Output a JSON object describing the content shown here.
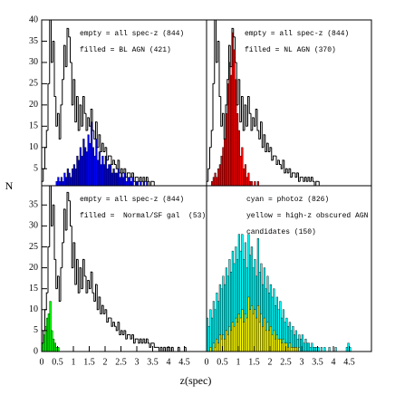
{
  "xlabel": "z(spec)",
  "ylabel": "N",
  "chart_data": [
    {
      "type": "histogram",
      "bins": [
        0,
        0.05,
        0.1,
        0.15,
        0.2,
        0.25,
        0.3,
        0.35,
        0.4,
        0.45,
        0.5,
        0.55,
        0.6,
        0.65,
        0.7,
        0.75,
        0.8,
        0.85,
        0.9,
        0.95,
        1,
        1.05,
        1.1,
        1.15,
        1.2,
        1.25,
        1.3,
        1.35,
        1.4,
        1.45,
        1.5,
        1.55,
        1.6,
        1.65,
        1.7,
        1.75,
        1.8,
        1.85,
        1.9,
        1.95,
        2,
        2.05,
        2.1,
        2.15,
        2.2,
        2.25,
        2.3,
        2.35,
        2.4,
        2.45,
        2.5,
        2.55,
        2.6,
        2.65,
        2.7,
        2.75,
        2.8,
        2.85,
        2.9,
        2.95,
        3,
        3.05,
        3.1,
        3.15,
        3.2,
        3.25,
        3.3,
        3.35,
        3.4,
        3.45,
        3.5,
        3.55,
        3.6,
        3.65,
        3.7,
        3.75,
        3.8,
        3.85,
        3.9,
        3.95,
        4,
        4.05,
        4.1,
        4.15,
        4.2,
        4.25,
        4.3,
        4.35,
        4.4,
        4.45,
        4.5,
        4.55,
        4.6,
        4.65,
        4.7,
        4.75,
        4.8
      ],
      "series": [
        {
          "name": "filled = BL AGN (421)",
          "color": "#0000ff",
          "filled": true,
          "values": [
            0,
            0,
            0,
            0,
            0,
            1,
            0,
            1,
            0,
            2,
            3,
            2,
            3,
            2,
            4,
            3,
            5,
            4,
            3,
            5,
            6,
            5,
            8,
            7,
            10,
            8,
            12,
            10,
            9,
            13,
            11,
            16,
            10,
            8,
            12,
            7,
            9,
            6,
            8,
            6,
            8,
            5,
            6,
            6,
            4,
            5,
            4,
            4,
            5,
            3,
            4,
            3,
            4,
            2,
            3,
            3,
            2,
            3,
            1,
            2,
            2,
            1,
            2,
            1,
            2,
            1,
            2,
            1,
            0,
            1,
            1,
            0,
            1,
            0,
            0,
            0,
            0,
            1,
            0,
            0,
            1,
            0,
            0,
            0,
            0,
            0,
            1,
            0,
            0,
            0,
            1,
            0,
            0,
            0,
            0,
            0
          ]
        },
        {
          "name": "empty = all spec-z (844)",
          "color": "#000000",
          "filled": false,
          "values": [
            2,
            5,
            10,
            14,
            25,
            40,
            30,
            35,
            22,
            15,
            18,
            12,
            20,
            26,
            34,
            29,
            38,
            36,
            30,
            20,
            26,
            16,
            22,
            14,
            20,
            15,
            22,
            18,
            14,
            17,
            15,
            19,
            14,
            12,
            16,
            10,
            13,
            9,
            11,
            9,
            10,
            7,
            8,
            8,
            6,
            7,
            6,
            5,
            7,
            4,
            5,
            4,
            5,
            3,
            4,
            4,
            3,
            4,
            2,
            3,
            3,
            2,
            3,
            2,
            3,
            2,
            3,
            2,
            1,
            2,
            2,
            1,
            1,
            1,
            0,
            1,
            0,
            1,
            0,
            1,
            1,
            0,
            1,
            0,
            0,
            0,
            1,
            0,
            0,
            0,
            1,
            0,
            0,
            0,
            0,
            0
          ]
        }
      ],
      "xlim": [
        0,
        5.2
      ],
      "ylim": [
        1,
        40
      ],
      "yticks": [
        5,
        10,
        15,
        20,
        25,
        30,
        35,
        40
      ]
    },
    {
      "type": "histogram",
      "bins": [
        0,
        0.05,
        0.1,
        0.15,
        0.2,
        0.25,
        0.3,
        0.35,
        0.4,
        0.45,
        0.5,
        0.55,
        0.6,
        0.65,
        0.7,
        0.75,
        0.8,
        0.85,
        0.9,
        0.95,
        1,
        1.05,
        1.1,
        1.15,
        1.2,
        1.25,
        1.3,
        1.35,
        1.4,
        1.45,
        1.5,
        1.55,
        1.6,
        1.65,
        1.7,
        1.75,
        1.8,
        1.85,
        1.9,
        1.95,
        2,
        2.05,
        2.1,
        2.15,
        2.2,
        2.25,
        2.3,
        2.35,
        2.4,
        2.45,
        2.5,
        2.55,
        2.6,
        2.65,
        2.7,
        2.75,
        2.8,
        2.85,
        2.9,
        2.95,
        3,
        3.05,
        3.1,
        3.15,
        3.2,
        3.25,
        3.3,
        3.35,
        3.4,
        3.45,
        3.5,
        3.55,
        3.6,
        3.65,
        3.7,
        3.75,
        3.8,
        3.85,
        3.9,
        3.95,
        4,
        4.05,
        4.1,
        4.15,
        4.2,
        4.25,
        4.3,
        4.35,
        4.4,
        4.45,
        4.5,
        4.55,
        4.6,
        4.65,
        4.7,
        4.75,
        4.8
      ],
      "series": [
        {
          "name": "filled = NL AGN (370)",
          "color": "#ff0000",
          "filled": true,
          "values": [
            0,
            0,
            1,
            2,
            3,
            4,
            3,
            5,
            6,
            8,
            10,
            12,
            18,
            25,
            30,
            27,
            37,
            33,
            26,
            18,
            14,
            8,
            10,
            5,
            6,
            3,
            4,
            2,
            2,
            1,
            2,
            1,
            2,
            0,
            1,
            1,
            0,
            1,
            0,
            1,
            1,
            0,
            1,
            0,
            0,
            1,
            0,
            0,
            1,
            0,
            0,
            0,
            1,
            0,
            0,
            0,
            0,
            0,
            0,
            0,
            0,
            0,
            0,
            0,
            0,
            0,
            0,
            0,
            0,
            0,
            0,
            0,
            0,
            0,
            0,
            0,
            0,
            0,
            0,
            0,
            0,
            0,
            0,
            0,
            0,
            0,
            0,
            0,
            0,
            0,
            0,
            0,
            0,
            0,
            0,
            0
          ]
        },
        {
          "name": "empty = all spec-z (844)",
          "color": "#000000",
          "filled": false,
          "values": [
            2,
            5,
            10,
            14,
            25,
            40,
            30,
            35,
            22,
            15,
            18,
            12,
            20,
            26,
            34,
            29,
            38,
            36,
            30,
            20,
            26,
            16,
            22,
            14,
            20,
            15,
            22,
            18,
            14,
            17,
            15,
            19,
            14,
            12,
            16,
            10,
            13,
            9,
            11,
            9,
            10,
            7,
            8,
            8,
            6,
            7,
            6,
            5,
            7,
            4,
            5,
            4,
            5,
            3,
            4,
            4,
            3,
            4,
            2,
            3,
            3,
            2,
            3,
            2,
            3,
            2,
            3,
            2,
            1,
            2,
            2,
            1,
            1,
            1,
            0,
            1,
            0,
            1,
            0,
            1,
            1,
            0,
            1,
            0,
            0,
            0,
            1,
            0,
            0,
            0,
            1,
            0,
            0,
            0,
            0,
            0
          ]
        }
      ],
      "xlim": [
        0,
        5.2
      ],
      "ylim": [
        1,
        40
      ]
    },
    {
      "type": "histogram",
      "bins": [
        0,
        0.05,
        0.1,
        0.15,
        0.2,
        0.25,
        0.3,
        0.35,
        0.4,
        0.45,
        0.5,
        0.55,
        0.6,
        0.65,
        0.7,
        0.75,
        0.8,
        0.85,
        0.9,
        0.95,
        1,
        1.05,
        1.1,
        1.15,
        1.2,
        1.25,
        1.3,
        1.35,
        1.4,
        1.45,
        1.5,
        1.55,
        1.6,
        1.65,
        1.7,
        1.75,
        1.8,
        1.85,
        1.9,
        1.95,
        2,
        2.05,
        2.1,
        2.15,
        2.2,
        2.25,
        2.3,
        2.35,
        2.4,
        2.45,
        2.5,
        2.55,
        2.6,
        2.65,
        2.7,
        2.75,
        2.8,
        2.85,
        2.9,
        2.95,
        3,
        3.05,
        3.1,
        3.15,
        3.2,
        3.25,
        3.3,
        3.35,
        3.4,
        3.45,
        3.5,
        3.55,
        3.6,
        3.65,
        3.7,
        3.75,
        3.8,
        3.85,
        3.9,
        3.95,
        4,
        4.05,
        4.1,
        4.15,
        4.2,
        4.25,
        4.3,
        4.35,
        4.4,
        4.45,
        4.5,
        4.55,
        4.6,
        4.65,
        4.7,
        4.75,
        4.8
      ],
      "series": [
        {
          "name": "filled =  Normal/SF gal  (53)",
          "color": "#00ff00",
          "filled": true,
          "values": [
            2,
            4,
            6,
            8,
            9,
            12,
            5,
            3,
            2,
            1,
            1,
            0,
            0,
            0,
            0,
            0,
            0,
            0,
            0,
            0,
            0,
            0,
            0,
            0,
            0,
            0,
            0,
            0,
            0,
            0,
            0,
            0,
            0,
            0,
            0,
            0,
            0,
            0,
            0,
            0,
            0,
            0,
            0,
            0,
            0,
            0,
            0,
            0,
            0,
            0,
            0,
            0,
            0,
            0,
            0,
            0,
            0,
            0,
            0,
            0,
            0,
            0,
            0,
            0,
            0,
            0,
            0,
            0,
            0,
            0,
            0,
            0,
            0,
            0,
            0,
            0,
            0,
            0,
            0,
            0,
            0,
            0,
            0,
            0,
            0,
            0,
            0,
            0,
            0,
            0,
            0,
            0,
            0,
            0,
            0,
            0
          ]
        },
        {
          "name": "empty = all spec-z (844)",
          "color": "#000000",
          "filled": false,
          "values": [
            2,
            5,
            10,
            14,
            25,
            40,
            30,
            35,
            22,
            15,
            18,
            12,
            20,
            26,
            34,
            29,
            38,
            36,
            30,
            20,
            26,
            16,
            22,
            14,
            20,
            15,
            22,
            18,
            14,
            17,
            15,
            19,
            14,
            12,
            16,
            10,
            13,
            9,
            11,
            9,
            10,
            7,
            8,
            8,
            6,
            7,
            6,
            5,
            7,
            4,
            5,
            4,
            5,
            3,
            4,
            4,
            3,
            4,
            2,
            3,
            3,
            2,
            3,
            2,
            3,
            2,
            3,
            2,
            1,
            2,
            2,
            1,
            1,
            1,
            0,
            1,
            0,
            1,
            0,
            1,
            1,
            0,
            1,
            0,
            0,
            0,
            1,
            0,
            0,
            0,
            1,
            0,
            0,
            0,
            0,
            0
          ]
        }
      ],
      "xlim": [
        0,
        5.2
      ],
      "ylim": [
        0,
        39.6
      ],
      "yticks": [
        0,
        5,
        10,
        15,
        20,
        25,
        30,
        35
      ],
      "xticks": [
        0,
        0.5,
        1,
        1.5,
        2,
        2.5,
        3,
        3.5,
        4,
        4.5
      ]
    },
    {
      "type": "histogram",
      "bins": [
        0,
        0.05,
        0.1,
        0.15,
        0.2,
        0.25,
        0.3,
        0.35,
        0.4,
        0.45,
        0.5,
        0.55,
        0.6,
        0.65,
        0.7,
        0.75,
        0.8,
        0.85,
        0.9,
        0.95,
        1,
        1.05,
        1.1,
        1.15,
        1.2,
        1.25,
        1.3,
        1.35,
        1.4,
        1.45,
        1.5,
        1.55,
        1.6,
        1.65,
        1.7,
        1.75,
        1.8,
        1.85,
        1.9,
        1.95,
        2,
        2.05,
        2.1,
        2.15,
        2.2,
        2.25,
        2.3,
        2.35,
        2.4,
        2.45,
        2.5,
        2.55,
        2.6,
        2.65,
        2.7,
        2.75,
        2.8,
        2.85,
        2.9,
        2.95,
        3,
        3.05,
        3.1,
        3.15,
        3.2,
        3.25,
        3.3,
        3.35,
        3.4,
        3.45,
        3.5,
        3.55,
        3.6,
        3.65,
        3.7,
        3.75,
        3.8,
        3.85,
        3.9,
        3.95,
        4,
        4.05,
        4.1,
        4.15,
        4.2,
        4.25,
        4.3,
        4.35,
        4.4,
        4.45,
        4.5,
        4.55,
        4.6,
        4.65,
        4.7,
        4.75,
        4.8
      ],
      "series": [
        {
          "name": "cyan = photoz  (826)",
          "color": "#00ffff",
          "filled": true,
          "values": [
            8,
            6,
            10,
            8,
            12,
            10,
            14,
            12,
            16,
            15,
            18,
            16,
            20,
            18,
            22,
            19,
            24,
            21,
            25,
            22,
            28,
            24,
            28,
            22,
            26,
            20,
            28,
            23,
            25,
            20,
            22,
            18,
            27,
            19,
            21,
            16,
            20,
            15,
            18,
            14,
            16,
            13,
            15,
            11,
            13,
            10,
            12,
            8,
            10,
            7,
            8,
            6,
            7,
            5,
            6,
            4,
            5,
            3,
            4,
            3,
            4,
            2,
            3,
            2,
            2,
            1,
            2,
            1,
            1,
            1,
            1,
            0,
            1,
            0,
            1,
            0,
            0,
            1,
            0,
            0,
            0,
            1,
            0,
            0,
            0,
            0,
            0,
            0,
            1,
            2,
            1,
            0,
            0,
            0,
            0,
            0
          ]
        },
        {
          "name": "yellow = high-z obscured AGN candidates (150)",
          "color": "#ffff00",
          "filled": true,
          "values": [
            0,
            0,
            1,
            0,
            2,
            1,
            3,
            2,
            4,
            3,
            4,
            3,
            5,
            4,
            6,
            5,
            7,
            6,
            8,
            7,
            9,
            8,
            10,
            7,
            9,
            8,
            13,
            10,
            11,
            9,
            10,
            8,
            11,
            7,
            9,
            6,
            8,
            5,
            7,
            5,
            6,
            4,
            5,
            3,
            4,
            3,
            3,
            2,
            3,
            2,
            2,
            1,
            2,
            1,
            1,
            1,
            1,
            0,
            1,
            0,
            0,
            0,
            0,
            0,
            0,
            0,
            0,
            0,
            0,
            0,
            0,
            0,
            0,
            0,
            0,
            0,
            0,
            0,
            0,
            0,
            0,
            0,
            0,
            0,
            0,
            0,
            0,
            0,
            0,
            0,
            0,
            0,
            0,
            0,
            0,
            0
          ]
        }
      ],
      "xlim": [
        0,
        5.2
      ],
      "ylim": [
        0,
        39.6
      ],
      "xticks": [
        0,
        0.5,
        1,
        1.5,
        2,
        2.5,
        3,
        3.5,
        4,
        4.5
      ]
    }
  ]
}
